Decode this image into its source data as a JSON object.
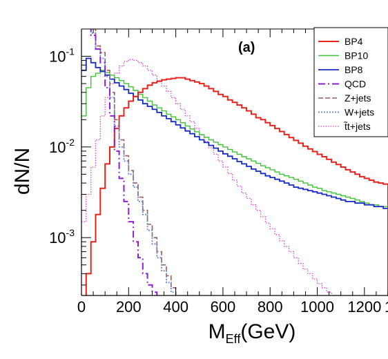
{
  "chart_data": {
    "type": "line",
    "step": true,
    "annotation": "(a)",
    "xlabel_main": "M",
    "xlabel_sub": "Eff",
    "xlabel_unit": "(GeV)",
    "ylabel": "dN/N",
    "xlim": [
      0,
      1300
    ],
    "ylim": [
      0.00023,
      0.2
    ],
    "yscale": "log",
    "x_ticks": [
      "0",
      "200",
      "400",
      "600",
      "800",
      "1000",
      "1200",
      "1"
    ],
    "y_ticks": [
      {
        "base": "10",
        "exp": "-1",
        "value": 0.1
      },
      {
        "base": "10",
        "exp": "-2",
        "value": 0.01
      },
      {
        "base": "10",
        "exp": "-3",
        "value": 0.001
      }
    ],
    "legend_position": "top-right",
    "bin_edges_step": 20,
    "series": [
      {
        "name": "BP4",
        "color": "#e8211d",
        "dash": "",
        "width": 2,
        "x0": 0,
        "values": [
          0.0002,
          0.0004,
          0.0009,
          0.0018,
          0.0035,
          0.0065,
          0.01,
          0.016,
          0.022,
          0.027,
          0.032,
          0.036,
          0.04,
          0.044,
          0.048,
          0.051,
          0.053,
          0.055,
          0.056,
          0.057,
          0.058,
          0.058,
          0.056,
          0.054,
          0.052,
          0.05,
          0.047,
          0.044,
          0.041,
          0.038,
          0.036,
          0.033,
          0.031,
          0.029,
          0.027,
          0.025,
          0.023,
          0.021,
          0.02,
          0.0185,
          0.0172,
          0.016,
          0.0148,
          0.0137,
          0.0127,
          0.0118,
          0.011,
          0.0102,
          0.0095,
          0.0089,
          0.0083,
          0.0078,
          0.0073,
          0.0068,
          0.0064,
          0.006,
          0.0056,
          0.0053,
          0.005,
          0.0047,
          0.0045,
          0.0043,
          0.0041,
          0.004,
          0.0039
        ]
      },
      {
        "name": "BP10",
        "color": "#3ec236",
        "dash": "",
        "width": 1.4,
        "x0": 0,
        "values": [
          0.022,
          0.045,
          0.06,
          0.065,
          0.07,
          0.066,
          0.062,
          0.058,
          0.054,
          0.05,
          0.046,
          0.042,
          0.038,
          0.035,
          0.032,
          0.029,
          0.027,
          0.025,
          0.023,
          0.0215,
          0.02,
          0.0185,
          0.017,
          0.0158,
          0.0147,
          0.0137,
          0.0128,
          0.012,
          0.0113,
          0.0106,
          0.01,
          0.0094,
          0.0088,
          0.0083,
          0.0078,
          0.0074,
          0.007,
          0.0066,
          0.0062,
          0.0059,
          0.0056,
          0.0053,
          0.005,
          0.0048,
          0.0046,
          0.0044,
          0.0042,
          0.004,
          0.0038,
          0.0036,
          0.0035,
          0.0033,
          0.0032,
          0.0031,
          0.003,
          0.0029,
          0.0028,
          0.0027,
          0.0026,
          0.0025,
          0.0024,
          0.0023,
          0.0023,
          0.0022,
          0.0022
        ]
      },
      {
        "name": "BP8",
        "color": "#1628c8",
        "dash": "",
        "width": 1.8,
        "x0": 0,
        "values": [
          0.07,
          0.095,
          0.085,
          0.075,
          0.068,
          0.062,
          0.056,
          0.051,
          0.047,
          0.043,
          0.039,
          0.036,
          0.033,
          0.03,
          0.028,
          0.026,
          0.024,
          0.022,
          0.0205,
          0.019,
          0.0175,
          0.0162,
          0.015,
          0.014,
          0.013,
          0.012,
          0.0112,
          0.0104,
          0.0097,
          0.009,
          0.0084,
          0.0079,
          0.0074,
          0.0069,
          0.0065,
          0.0061,
          0.0057,
          0.0054,
          0.0051,
          0.0048,
          0.0046,
          0.0044,
          0.0042,
          0.004,
          0.0038,
          0.0036,
          0.0035,
          0.0034,
          0.0033,
          0.0032,
          0.0031,
          0.003,
          0.0029,
          0.0028,
          0.0027,
          0.0026,
          0.0025,
          0.0025,
          0.0024,
          0.0024,
          0.0023,
          0.0023,
          0.0022,
          0.0022,
          0.0021
        ]
      },
      {
        "name": "t̃t+jets",
        "color": "#e23ad8",
        "dash": "1.5,2",
        "width": 1.3,
        "x0": 0,
        "values": [
          0.0015,
          0.003,
          0.006,
          0.012,
          0.022,
          0.035,
          0.05,
          0.065,
          0.078,
          0.088,
          0.092,
          0.09,
          0.085,
          0.078,
          0.07,
          0.062,
          0.054,
          0.047,
          0.041,
          0.035,
          0.03,
          0.026,
          0.022,
          0.019,
          0.016,
          0.0135,
          0.0115,
          0.0098,
          0.0083,
          0.007,
          0.006,
          0.0051,
          0.0043,
          0.0037,
          0.0031,
          0.0027,
          0.0023,
          0.002,
          0.0017,
          0.00145,
          0.00125,
          0.00108,
          0.00092,
          0.0008,
          0.0007,
          0.0006,
          0.00052,
          0.00045,
          0.0004,
          0.00035,
          0.00031,
          0.00028,
          0.00025,
          0.00023,
          0.00021
        ]
      },
      {
        "name": "QCD",
        "color": "#8c1ed6",
        "dash": "10,4,2,4",
        "width": 2,
        "x0": 0,
        "values": [
          0.25,
          0.22,
          0.17,
          0.12,
          0.085,
          0.045,
          0.022,
          0.009,
          0.0045,
          0.0025,
          0.0015,
          0.0009,
          0.0006,
          0.0004,
          0.0003,
          0.00025,
          0.00022,
          0.0002
        ]
      },
      {
        "name": "Z+jets",
        "color": "#9a5a5a",
        "dash": "7,3",
        "width": 1.6,
        "x0": 0,
        "values": [
          0.3,
          0.22,
          0.2,
          0.13,
          0.11,
          0.07,
          0.04,
          0.02,
          0.012,
          0.008,
          0.0055,
          0.004,
          0.0028,
          0.002,
          0.0014,
          0.001,
          0.0007,
          0.0005,
          0.00038,
          0.00028,
          0.00022,
          0.0002
        ]
      },
      {
        "name": "W+jets",
        "color": "#6f8ed2",
        "dash": "2,2",
        "width": 2,
        "x0": 0,
        "values": [
          0.28,
          0.21,
          0.18,
          0.12,
          0.095,
          0.06,
          0.035,
          0.017,
          0.01,
          0.007,
          0.005,
          0.0036,
          0.0025,
          0.0018,
          0.0012,
          0.00085,
          0.0006,
          0.00043,
          0.00032,
          0.00025,
          0.0002
        ]
      }
    ]
  }
}
